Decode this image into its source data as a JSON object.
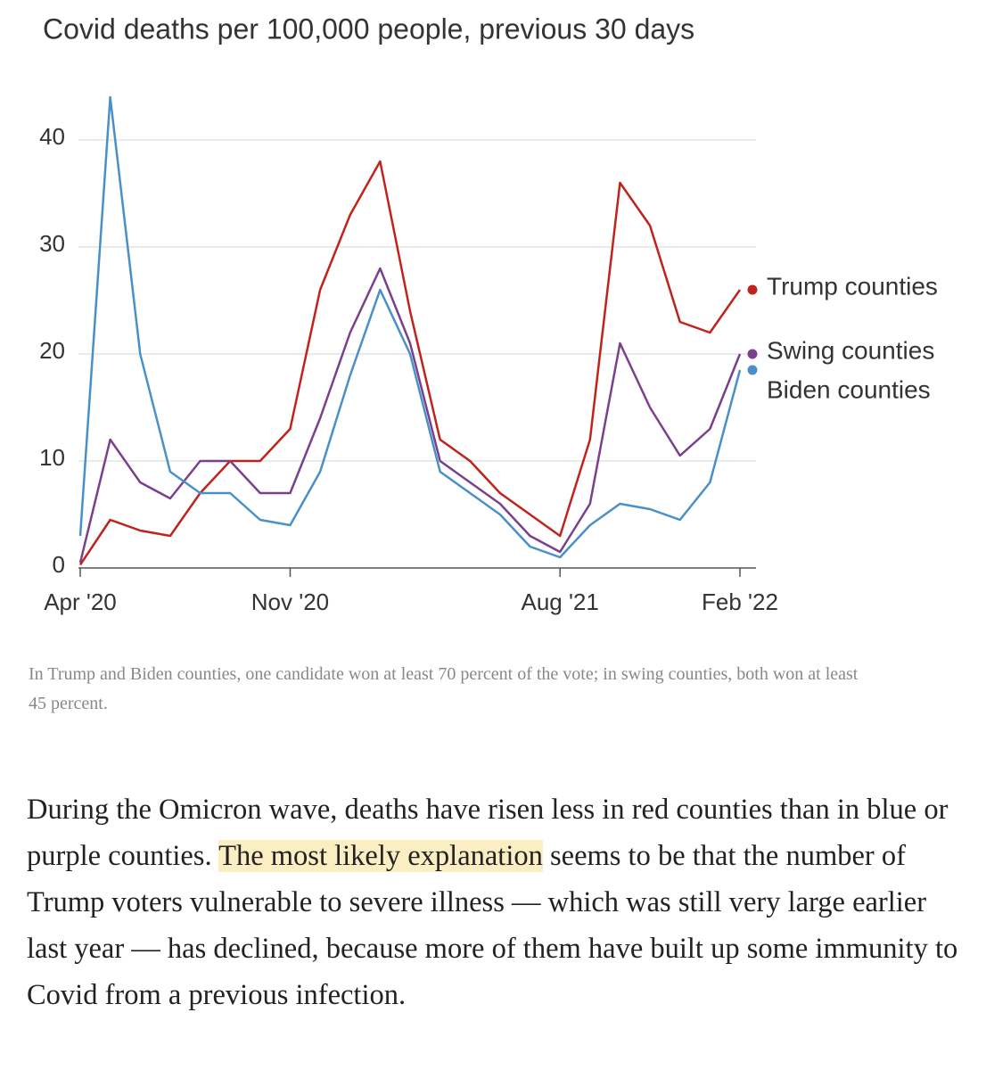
{
  "chart_data": {
    "type": "line",
    "title": "Covid deaths per 100,000 people, previous 30 days",
    "x": [
      "2020-04",
      "2020-05",
      "2020-06",
      "2020-07",
      "2020-08",
      "2020-09",
      "2020-10",
      "2020-11",
      "2020-12",
      "2021-01",
      "2021-02",
      "2021-03",
      "2021-04",
      "2021-05",
      "2021-06",
      "2021-07",
      "2021-08",
      "2021-09",
      "2021-10",
      "2021-11",
      "2021-12",
      "2022-01",
      "2022-02"
    ],
    "series": [
      {
        "name": "Trump counties",
        "color": "#c0231b",
        "values": [
          0.3,
          4.5,
          3.5,
          3,
          7,
          10,
          10,
          13,
          26,
          33,
          38,
          24,
          12,
          10,
          7,
          5,
          3,
          12,
          36,
          32,
          23,
          22,
          26
        ]
      },
      {
        "name": "Swing counties",
        "color": "#7b3f8c",
        "values": [
          0.5,
          12,
          8,
          6.5,
          10,
          10,
          7,
          7,
          14,
          22,
          28,
          21,
          10,
          8,
          6,
          3,
          1.5,
          6,
          21,
          15,
          10.5,
          13,
          20
        ]
      },
      {
        "name": "Biden counties",
        "color": "#4a90c8",
        "values": [
          3,
          44,
          20,
          9,
          7,
          7,
          4.5,
          4,
          9,
          18,
          26,
          20,
          9,
          7,
          5,
          2,
          1,
          4,
          6,
          5.5,
          4.5,
          8,
          18.5
        ]
      }
    ],
    "xlim": [
      "2020-04",
      "2022-02"
    ],
    "xticks": [
      {
        "value": "2020-04",
        "label": "Apr '20"
      },
      {
        "value": "2020-11",
        "label": "Nov '20"
      },
      {
        "value": "2021-08",
        "label": "Aug '21"
      },
      {
        "value": "2022-02",
        "label": "Feb '22"
      }
    ],
    "ylim": [
      0,
      46
    ],
    "yticks": [
      0,
      10,
      20,
      30,
      40
    ],
    "grid": true,
    "note": "In Trump and Biden counties, one candidate won at least 70 percent of the vote; in swing counties, both won at least 45 percent."
  },
  "article": {
    "before": "During the Omicron wave, deaths have risen less in red counties than in blue or purple counties. ",
    "highlight": "The most likely explanation",
    "after": " seems to be that the number of Trump voters vulnerable to severe illness — which was still very large earlier last year — has declined, because more of them have built up some immunity to Covid from a previous infection."
  }
}
